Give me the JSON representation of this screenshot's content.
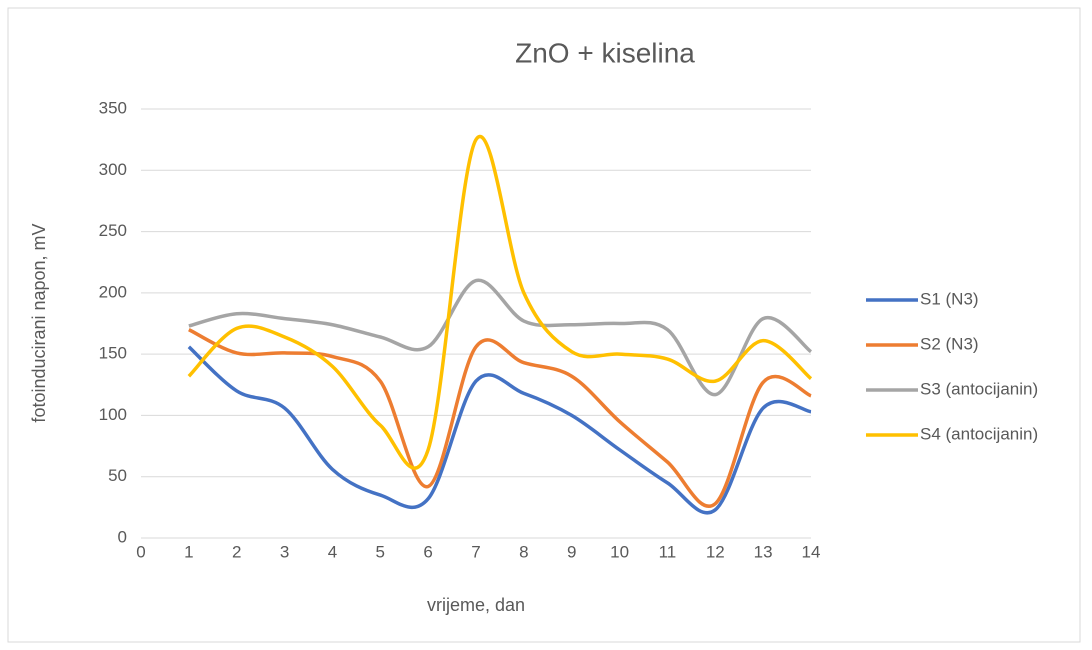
{
  "chart_data": {
    "type": "line",
    "title": "ZnO + kiselina",
    "xlabel": "vrijeme, dan",
    "ylabel": "fotoinducirani napon, mV",
    "x": [
      1,
      2,
      3,
      4,
      5,
      6,
      7,
      8,
      9,
      10,
      11,
      12,
      13,
      14
    ],
    "series": [
      {
        "name": "S1 (N3)",
        "color": "#4472c4",
        "values": [
          156,
          120,
          106,
          56,
          35,
          32,
          128,
          118,
          100,
          72,
          45,
          23,
          106,
          103
        ]
      },
      {
        "name": "S2 (N3)",
        "color": "#ed7d31",
        "values": [
          170,
          151,
          151,
          148,
          128,
          42,
          156,
          143,
          132,
          95,
          62,
          28,
          127,
          116
        ]
      },
      {
        "name": "S3 (antocijanin)",
        "color": "#a5a5a5",
        "values": [
          173,
          183,
          179,
          174,
          164,
          156,
          210,
          177,
          174,
          175,
          170,
          117,
          179,
          152
        ]
      },
      {
        "name": "S4 (antocijanin)",
        "color": "#ffc000",
        "values": [
          132,
          171,
          164,
          140,
          92,
          72,
          325,
          200,
          152,
          150,
          146,
          128,
          161,
          130
        ]
      }
    ],
    "xlim": [
      0,
      14
    ],
    "xticks": [
      0,
      1,
      2,
      3,
      4,
      5,
      6,
      7,
      8,
      9,
      10,
      11,
      12,
      13,
      14
    ],
    "ylim": [
      0,
      350
    ],
    "yticks": [
      0,
      50,
      100,
      150,
      200,
      250,
      300,
      350
    ],
    "grid": true,
    "smooth": true,
    "legend": "right"
  }
}
